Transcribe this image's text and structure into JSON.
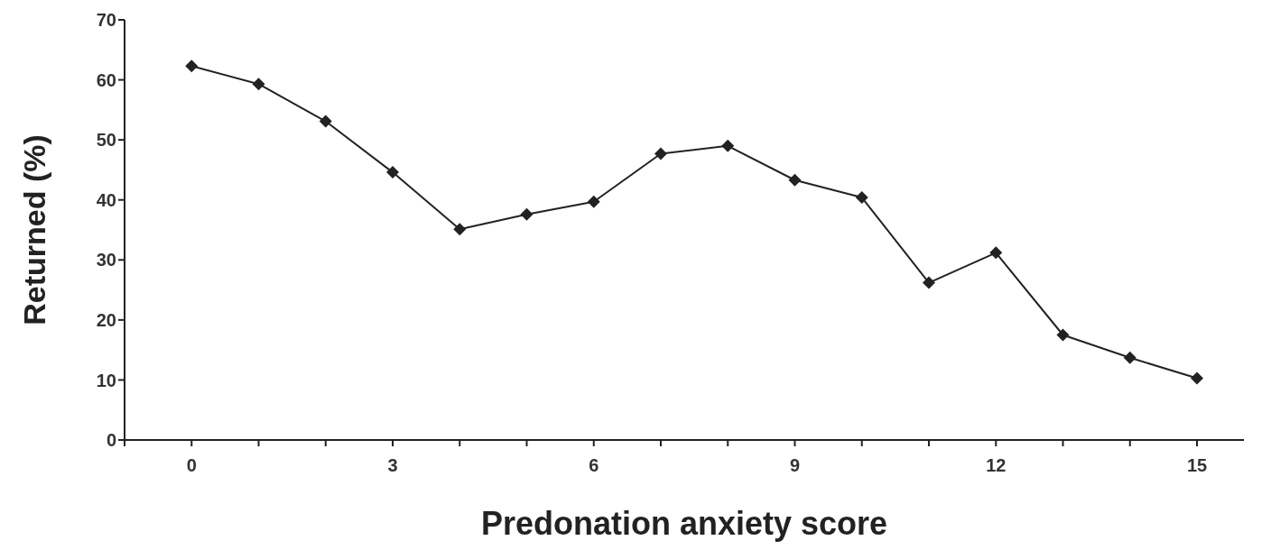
{
  "chart_data": {
    "type": "line",
    "xlabel": "Predonation anxiety score",
    "ylabel": "Returned (%)",
    "x": [
      0,
      1,
      2,
      3,
      4,
      5,
      6,
      7,
      8,
      9,
      10,
      11,
      12,
      13,
      14,
      15
    ],
    "series": [
      {
        "color": "#222222",
        "values": [
          62.3,
          59.3,
          53.1,
          44.6,
          35.1,
          37.6,
          39.7,
          47.7,
          49.0,
          43.3,
          40.4,
          26.2,
          31.2,
          17.5,
          13.7,
          10.3
        ]
      }
    ],
    "xlim": [
      -1,
      15.7
    ],
    "xticks": [
      {
        "value": -1,
        "label": null
      },
      0,
      {
        "value": 1,
        "label": null
      },
      {
        "value": 2,
        "label": null
      },
      3,
      {
        "value": 4,
        "label": null
      },
      {
        "value": 5,
        "label": null
      },
      6,
      {
        "value": 7,
        "label": null
      },
      {
        "value": 8,
        "label": null
      },
      9,
      {
        "value": 10,
        "label": null
      },
      {
        "value": 11,
        "label": null
      },
      12,
      {
        "value": 13,
        "label": null
      },
      {
        "value": 14,
        "label": null
      },
      15
    ],
    "ylim": [
      0,
      70
    ],
    "yticks": [
      0,
      10,
      20,
      30,
      40,
      50,
      60,
      70
    ],
    "grid": false,
    "legend": false,
    "marker": "diamond",
    "line_style": "solid"
  }
}
